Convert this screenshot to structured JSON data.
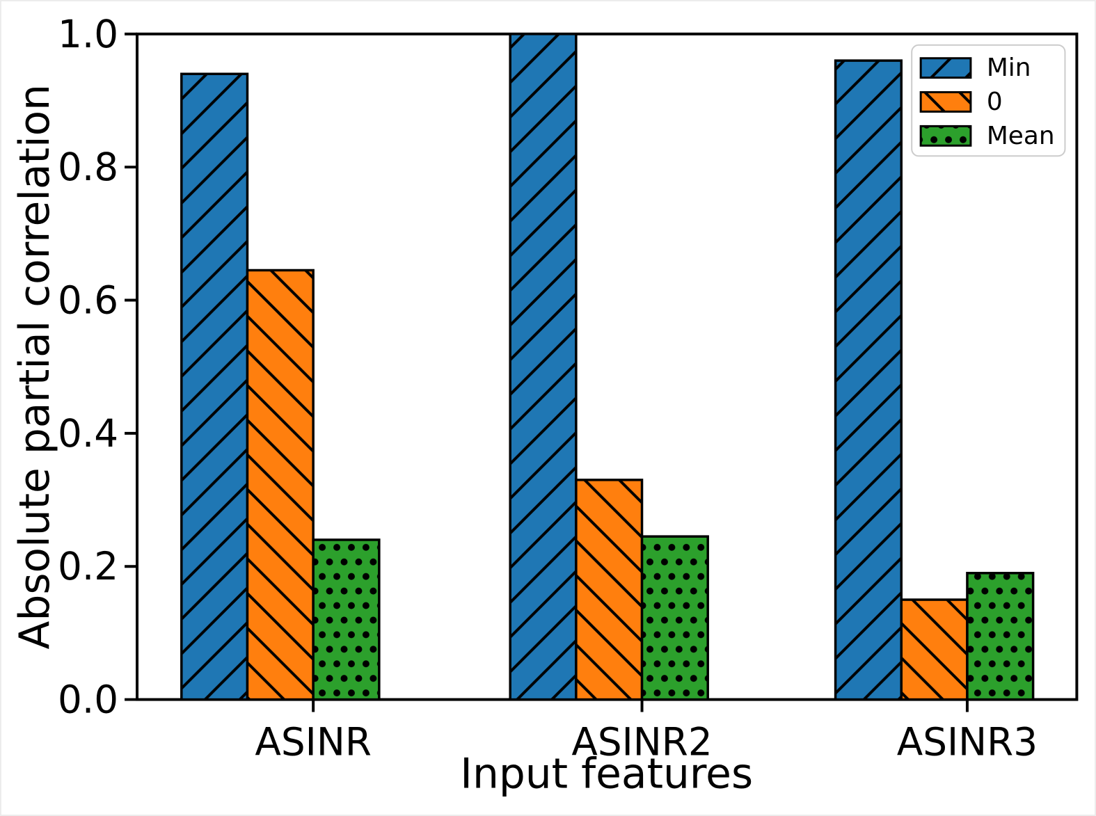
{
  "figure": {
    "background": "#ffffff",
    "border_color": "#ececec"
  },
  "chart_data": {
    "type": "bar",
    "title": "",
    "xlabel": "Input features",
    "ylabel": "Absolute partial correlation",
    "categories": [
      "ASINR",
      "ASINR2",
      "ASINR3"
    ],
    "series": [
      {
        "name": "Min",
        "color": "#1f77b4",
        "hatch": "slash",
        "values": [
          0.94,
          1.0,
          0.96
        ]
      },
      {
        "name": "0",
        "color": "#ff7f0e",
        "hatch": "backslash",
        "values": [
          0.645,
          0.33,
          0.15
        ]
      },
      {
        "name": "Mean",
        "color": "#2ca02c",
        "hatch": "dot",
        "values": [
          0.24,
          0.245,
          0.19
        ]
      }
    ],
    "y_ticks": [
      "0.0",
      "0.2",
      "0.4",
      "0.6",
      "0.8",
      "1.0"
    ],
    "ylim": [
      0.0,
      1.0
    ],
    "legend_position": "upper right",
    "grid": false,
    "bar_edge_color": "#000000",
    "axis_color": "#000000",
    "legend_border_color": "#cccccc"
  }
}
